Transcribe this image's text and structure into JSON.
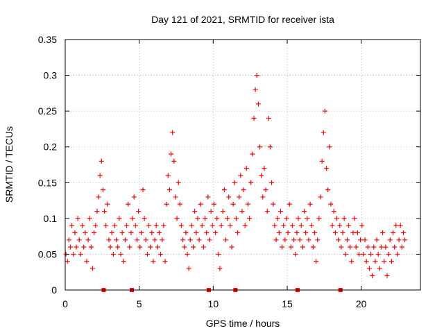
{
  "chart_data": {
    "type": "scatter",
    "title": "Day 121 of 2021, SRMTID for receiver ista",
    "xlabel": "GPS time / hours",
    "ylabel": "SRMTID / TECUs",
    "xlim": [
      0,
      24
    ],
    "ylim": [
      0,
      0.35
    ],
    "xticks": [
      0,
      5,
      10,
      15,
      20
    ],
    "xtick_labels": [
      "0",
      "5",
      "10",
      "15",
      "20"
    ],
    "yticks": [
      0,
      0.05,
      0.1,
      0.15,
      0.2,
      0.25,
      0.3,
      0.35
    ],
    "ytick_labels": [
      "0",
      "0.05",
      "0.1",
      "0.15",
      "0.2",
      "0.25",
      "0.3",
      "0.35"
    ],
    "grid": true,
    "marker": "+",
    "color": "#ff0000",
    "gap_markers_x": [
      2.6,
      4.5,
      9.7,
      11.5,
      15.7,
      18.6
    ],
    "series": [
      {
        "name": "SRMTID",
        "points": [
          [
            0.05,
            0.05
          ],
          [
            0.15,
            0.04
          ],
          [
            0.25,
            0.07
          ],
          [
            0.35,
            0.06
          ],
          [
            0.45,
            0.09
          ],
          [
            0.55,
            0.05
          ],
          [
            0.65,
            0.08
          ],
          [
            0.75,
            0.06
          ],
          [
            0.85,
            0.1
          ],
          [
            0.95,
            0.07
          ],
          [
            1.05,
            0.05
          ],
          [
            1.15,
            0.09
          ],
          [
            1.25,
            0.06
          ],
          [
            1.35,
            0.08
          ],
          [
            1.45,
            0.04
          ],
          [
            1.55,
            0.07
          ],
          [
            1.65,
            0.1
          ],
          [
            1.75,
            0.06
          ],
          [
            1.85,
            0.03
          ],
          [
            1.95,
            0.08
          ],
          [
            2.05,
            0.09
          ],
          [
            2.15,
            0.11
          ],
          [
            2.25,
            0.13
          ],
          [
            2.35,
            0.16
          ],
          [
            2.45,
            0.18
          ],
          [
            2.55,
            0.14
          ],
          [
            2.65,
            0.11
          ],
          [
            2.75,
            0.09
          ],
          [
            2.85,
            0.12
          ],
          [
            2.95,
            0.07
          ],
          [
            3.05,
            0.06
          ],
          [
            3.15,
            0.08
          ],
          [
            3.25,
            0.05
          ],
          [
            3.35,
            0.09
          ],
          [
            3.45,
            0.07
          ],
          [
            3.55,
            0.06
          ],
          [
            3.65,
            0.1
          ],
          [
            3.75,
            0.05
          ],
          [
            3.85,
            0.08
          ],
          [
            3.95,
            0.04
          ],
          [
            4.05,
            0.07
          ],
          [
            4.15,
            0.09
          ],
          [
            4.25,
            0.12
          ],
          [
            4.35,
            0.06
          ],
          [
            4.45,
            0.08
          ],
          [
            4.55,
            0.1
          ],
          [
            4.65,
            0.13
          ],
          [
            4.75,
            0.09
          ],
          [
            4.85,
            0.07
          ],
          [
            4.95,
            0.11
          ],
          [
            5.05,
            0.06
          ],
          [
            5.15,
            0.08
          ],
          [
            5.25,
            0.14
          ],
          [
            5.35,
            0.1
          ],
          [
            5.45,
            0.07
          ],
          [
            5.55,
            0.05
          ],
          [
            5.65,
            0.09
          ],
          [
            5.75,
            0.06
          ],
          [
            5.85,
            0.08
          ],
          [
            5.95,
            0.04
          ],
          [
            6.05,
            0.07
          ],
          [
            6.15,
            0.09
          ],
          [
            6.25,
            0.06
          ],
          [
            6.35,
            0.08
          ],
          [
            6.45,
            0.05
          ],
          [
            6.55,
            0.07
          ],
          [
            6.65,
            0.09
          ],
          [
            6.75,
            0.04
          ],
          [
            6.85,
            0.12
          ],
          [
            6.95,
            0.16
          ],
          [
            7.05,
            0.14
          ],
          [
            7.15,
            0.19
          ],
          [
            7.25,
            0.22
          ],
          [
            7.35,
            0.18
          ],
          [
            7.45,
            0.13
          ],
          [
            7.55,
            0.1
          ],
          [
            7.65,
            0.15
          ],
          [
            7.75,
            0.12
          ],
          [
            7.85,
            0.09
          ],
          [
            7.95,
            0.07
          ],
          [
            8.05,
            0.06
          ],
          [
            8.15,
            0.08
          ],
          [
            8.25,
            0.05
          ],
          [
            8.35,
            0.03
          ],
          [
            8.45,
            0.07
          ],
          [
            8.55,
            0.09
          ],
          [
            8.65,
            0.06
          ],
          [
            8.75,
            0.11
          ],
          [
            8.85,
            0.08
          ],
          [
            8.95,
            0.1
          ],
          [
            9.05,
            0.07
          ],
          [
            9.15,
            0.12
          ],
          [
            9.25,
            0.09
          ],
          [
            9.35,
            0.06
          ],
          [
            9.45,
            0.1
          ],
          [
            9.55,
            0.08
          ],
          [
            9.65,
            0.13
          ],
          [
            9.75,
            0.07
          ],
          [
            9.85,
            0.11
          ],
          [
            9.95,
            0.09
          ],
          [
            10.05,
            0.12
          ],
          [
            10.15,
            0.08
          ],
          [
            10.25,
            0.1
          ],
          [
            10.35,
            0.05
          ],
          [
            10.45,
            0.03
          ],
          [
            10.55,
            0.09
          ],
          [
            10.65,
            0.11
          ],
          [
            10.75,
            0.14
          ],
          [
            10.85,
            0.07
          ],
          [
            10.95,
            0.1
          ],
          [
            11.05,
            0.13
          ],
          [
            11.15,
            0.09
          ],
          [
            11.25,
            0.06
          ],
          [
            11.35,
            0.12
          ],
          [
            11.45,
            0.15
          ],
          [
            11.55,
            0.1
          ],
          [
            11.65,
            0.08
          ],
          [
            11.75,
            0.13
          ],
          [
            11.85,
            0.16
          ],
          [
            11.95,
            0.11
          ],
          [
            12.05,
            0.14
          ],
          [
            12.15,
            0.09
          ],
          [
            12.25,
            0.17
          ],
          [
            12.35,
            0.12
          ],
          [
            12.45,
            0.1
          ],
          [
            12.55,
            0.15
          ],
          [
            12.65,
            0.19
          ],
          [
            12.75,
            0.24
          ],
          [
            12.85,
            0.28
          ],
          [
            12.95,
            0.3
          ],
          [
            13.05,
            0.26
          ],
          [
            13.15,
            0.2
          ],
          [
            13.25,
            0.16
          ],
          [
            13.35,
            0.13
          ],
          [
            13.45,
            0.17
          ],
          [
            13.55,
            0.14
          ],
          [
            13.65,
            0.11
          ],
          [
            13.75,
            0.24
          ],
          [
            13.85,
            0.2
          ],
          [
            13.95,
            0.15
          ],
          [
            14.05,
            0.12
          ],
          [
            14.15,
            0.09
          ],
          [
            14.25,
            0.07
          ],
          [
            14.35,
            0.1
          ],
          [
            14.45,
            0.08
          ],
          [
            14.55,
            0.11
          ],
          [
            14.65,
            0.06
          ],
          [
            14.75,
            0.09
          ],
          [
            14.85,
            0.07
          ],
          [
            14.95,
            0.1
          ],
          [
            15.05,
            0.08
          ],
          [
            15.15,
            0.12
          ],
          [
            15.25,
            0.06
          ],
          [
            15.35,
            0.09
          ],
          [
            15.45,
            0.07
          ],
          [
            15.55,
            0.05
          ],
          [
            15.65,
            0.08
          ],
          [
            15.75,
            0.1
          ],
          [
            15.85,
            0.07
          ],
          [
            15.95,
            0.09
          ],
          [
            16.05,
            0.06
          ],
          [
            16.15,
            0.11
          ],
          [
            16.25,
            0.08
          ],
          [
            16.35,
            0.1
          ],
          [
            16.45,
            0.07
          ],
          [
            16.55,
            0.12
          ],
          [
            16.65,
            0.09
          ],
          [
            16.75,
            0.06
          ],
          [
            16.85,
            0.08
          ],
          [
            16.95,
            0.04
          ],
          [
            17.05,
            0.07
          ],
          [
            17.15,
            0.1
          ],
          [
            17.25,
            0.13
          ],
          [
            17.35,
            0.18
          ],
          [
            17.45,
            0.22
          ],
          [
            17.55,
            0.25
          ],
          [
            17.65,
            0.17
          ],
          [
            17.75,
            0.14
          ],
          [
            17.85,
            0.2
          ],
          [
            17.95,
            0.12
          ],
          [
            18.05,
            0.09
          ],
          [
            18.15,
            0.11
          ],
          [
            18.25,
            0.08
          ],
          [
            18.35,
            0.1
          ],
          [
            18.45,
            0.07
          ],
          [
            18.55,
            0.09
          ],
          [
            18.65,
            0.06
          ],
          [
            18.75,
            0.08
          ],
          [
            18.85,
            0.1
          ],
          [
            18.95,
            0.05
          ],
          [
            19.05,
            0.07
          ],
          [
            19.15,
            0.09
          ],
          [
            19.25,
            0.06
          ],
          [
            19.35,
            0.04
          ],
          [
            19.45,
            0.08
          ],
          [
            19.55,
            0.1
          ],
          [
            19.65,
            0.06
          ],
          [
            19.75,
            0.08
          ],
          [
            19.85,
            0.05
          ],
          [
            19.95,
            0.07
          ],
          [
            20.05,
            0.09
          ],
          [
            20.15,
            0.05
          ],
          [
            20.25,
            0.07
          ],
          [
            20.35,
            0.04
          ],
          [
            20.45,
            0.06
          ],
          [
            20.55,
            0.03
          ],
          [
            20.65,
            0.05
          ],
          [
            20.75,
            0.02
          ],
          [
            20.85,
            0.06
          ],
          [
            20.95,
            0.04
          ],
          [
            21.05,
            0.07
          ],
          [
            21.15,
            0.05
          ],
          [
            21.25,
            0.03
          ],
          [
            21.35,
            0.06
          ],
          [
            21.45,
            0.08
          ],
          [
            21.55,
            0.04
          ],
          [
            21.65,
            0.06
          ],
          [
            21.75,
            0.02
          ],
          [
            21.85,
            0.05
          ],
          [
            21.95,
            0.07
          ],
          [
            22.05,
            0.04
          ],
          [
            22.15,
            0.08
          ],
          [
            22.25,
            0.06
          ],
          [
            22.35,
            0.09
          ],
          [
            22.45,
            0.05
          ],
          [
            22.55,
            0.07
          ],
          [
            22.65,
            0.09
          ],
          [
            22.75,
            0.06
          ],
          [
            22.85,
            0.08
          ],
          [
            22.95,
            0.07
          ]
        ]
      }
    ]
  }
}
